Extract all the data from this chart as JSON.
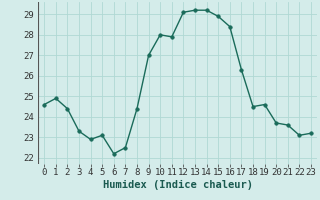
{
  "x": [
    0,
    1,
    2,
    3,
    4,
    5,
    6,
    7,
    8,
    9,
    10,
    11,
    12,
    13,
    14,
    15,
    16,
    17,
    18,
    19,
    20,
    21,
    22,
    23
  ],
  "y": [
    24.6,
    24.9,
    24.4,
    23.3,
    22.9,
    23.1,
    22.2,
    22.5,
    24.4,
    27.0,
    28.0,
    27.9,
    29.1,
    29.2,
    29.2,
    28.9,
    28.4,
    26.3,
    24.5,
    24.6,
    23.7,
    23.6,
    23.1,
    23.2
  ],
  "line_color": "#1a6b5a",
  "marker_color": "#1a6b5a",
  "bg_color": "#d4ecea",
  "grid_color": "#b0d8d4",
  "xlabel": "Humidex (Indice chaleur)",
  "xlim": [
    -0.5,
    23.5
  ],
  "ylim": [
    21.7,
    29.6
  ],
  "yticks": [
    22,
    23,
    24,
    25,
    26,
    27,
    28,
    29
  ],
  "xticks": [
    0,
    1,
    2,
    3,
    4,
    5,
    6,
    7,
    8,
    9,
    10,
    11,
    12,
    13,
    14,
    15,
    16,
    17,
    18,
    19,
    20,
    21,
    22,
    23
  ],
  "xlabel_fontsize": 7.5,
  "tick_fontsize": 6.5,
  "marker_size": 2.5,
  "line_width": 1.0
}
